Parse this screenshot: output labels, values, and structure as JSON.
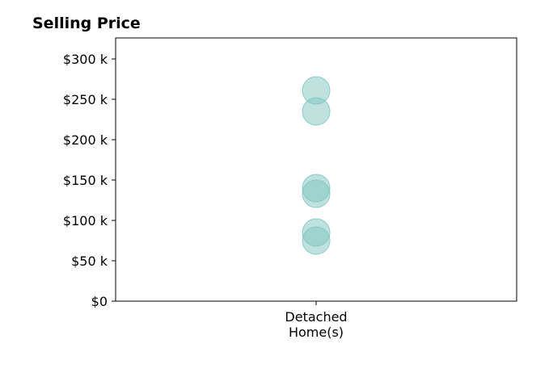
{
  "chart_data": {
    "type": "scatter",
    "title": "Selling Price",
    "xlabel": "",
    "ylabel": "",
    "categories": [
      "Detached Home(s)"
    ],
    "category_label_lines": [
      "Detached",
      "Home(s)"
    ],
    "series": [
      {
        "category": "Detached Home(s)",
        "values": [
          261000,
          235000,
          140000,
          133000,
          85000,
          75000
        ]
      }
    ],
    "y_ticks": [
      0,
      50000,
      100000,
      150000,
      200000,
      250000,
      300000
    ],
    "y_tick_labels": [
      "$0",
      "$50 k",
      "$100 k",
      "$150 k",
      "$200 k",
      "$250 k",
      "$300 k"
    ],
    "ylim": [
      0,
      326000
    ],
    "grid": false,
    "legend": "none",
    "point_color": "#7fc6bd",
    "point_opacity": 0.5
  }
}
